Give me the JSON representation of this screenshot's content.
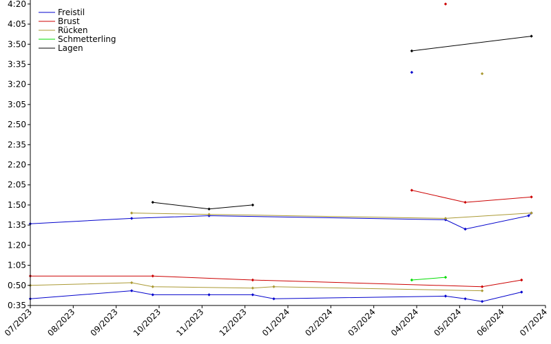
{
  "chart_data": {
    "type": "line",
    "title": "",
    "xlabel": "",
    "ylabel": "",
    "grid": false,
    "legend_position": "top-left",
    "x_ticks": [
      "07/2023",
      "08/2023",
      "09/2023",
      "10/2023",
      "11/2023",
      "12/2023",
      "01/2024",
      "02/2024",
      "03/2024",
      "04/2024",
      "05/2024",
      "06/2024",
      "07/2024"
    ],
    "xlim": [
      "2023-07-01",
      "2024-07-01"
    ],
    "y_ticks": [
      "0:35",
      "0:50",
      "1:05",
      "1:20",
      "1:35",
      "1:50",
      "2:05",
      "2:20",
      "2:35",
      "2:50",
      "3:05",
      "3:20",
      "3:35",
      "3:50",
      "4:05",
      "4:20"
    ],
    "ylim": [
      "0:35",
      "4:23"
    ],
    "series": [
      {
        "name": "Freistil",
        "color": "#0000cc",
        "segments": [
          [
            [
              "2023-07-01",
              "0:40"
            ],
            [
              "2023-09-11",
              "0:46"
            ],
            [
              "2023-09-26",
              "0:43"
            ],
            [
              "2023-11-05",
              "0:43"
            ],
            [
              "2023-12-06",
              "0:43"
            ],
            [
              "2023-12-21",
              "0:40"
            ],
            [
              "2024-04-21",
              "0:42"
            ],
            [
              "2024-05-05",
              "0:40"
            ],
            [
              "2024-05-17",
              "0:38"
            ],
            [
              "2024-06-14",
              "0:45"
            ]
          ],
          [
            [
              "2023-07-01",
              "1:36"
            ],
            [
              "2023-09-11",
              "1:40"
            ],
            [
              "2023-11-05",
              "1:42"
            ],
            [
              "2024-04-21",
              "1:39"
            ],
            [
              "2024-05-05",
              "1:32"
            ],
            [
              "2024-06-19",
              "1:42"
            ],
            [
              "2024-06-21",
              "1:44"
            ]
          ],
          [
            [
              "2024-03-28",
              "3:29"
            ]
          ]
        ]
      },
      {
        "name": "Brust",
        "color": "#cc0000",
        "segments": [
          [
            [
              "2023-07-01",
              "0:57"
            ],
            [
              "2023-09-26",
              "0:57"
            ],
            [
              "2023-12-06",
              "0:54"
            ],
            [
              "2024-05-17",
              "0:49"
            ],
            [
              "2024-06-14",
              "0:54"
            ]
          ],
          [
            [
              "2024-03-28",
              "2:01"
            ],
            [
              "2024-05-05",
              "1:52"
            ],
            [
              "2024-06-21",
              "1:56"
            ]
          ],
          [
            [
              "2024-04-21",
              "4:20"
            ]
          ]
        ]
      },
      {
        "name": "Rücken",
        "color": "#aa9933",
        "segments": [
          [
            [
              "2023-07-01",
              "0:50"
            ],
            [
              "2023-09-11",
              "0:52"
            ],
            [
              "2023-09-26",
              "0:49"
            ],
            [
              "2023-12-06",
              "0:48"
            ],
            [
              "2023-12-21",
              "0:49"
            ],
            [
              "2024-05-17",
              "0:46"
            ]
          ],
          [
            [
              "2023-09-11",
              "1:44"
            ],
            [
              "2023-11-05",
              "1:43"
            ],
            [
              "2024-04-21",
              "1:40"
            ],
            [
              "2024-06-21",
              "1:44"
            ]
          ],
          [
            [
              "2024-05-17",
              "3:28"
            ]
          ]
        ]
      },
      {
        "name": "Schmetterling",
        "color": "#00dd00",
        "segments": [
          [
            [
              "2024-03-28",
              "0:54"
            ],
            [
              "2024-04-21",
              "0:56"
            ]
          ]
        ]
      },
      {
        "name": "Lagen",
        "color": "#000000",
        "segments": [
          [
            [
              "2023-09-26",
              "1:52"
            ],
            [
              "2023-11-05",
              "1:47"
            ],
            [
              "2023-12-06",
              "1:50"
            ]
          ],
          [
            [
              "2024-03-28",
              "3:45"
            ],
            [
              "2024-06-21",
              "3:56"
            ]
          ]
        ]
      }
    ]
  }
}
